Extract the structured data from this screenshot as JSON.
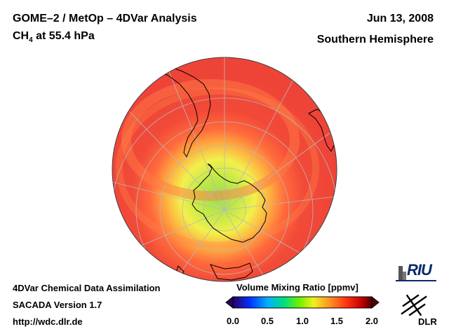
{
  "header": {
    "title_line1": "GOME–2 / MetOp – 4DVar Analysis",
    "species": "CH",
    "species_sub": "4",
    "level": "at 55.4 hPa",
    "date": "Jun 13, 2008",
    "region": "Southern Hemisphere"
  },
  "footer": {
    "line1": "4DVar Chemical Data Assimilation",
    "line2": "SACADA Version 1.7",
    "line3": "http://wdc.dlr.de"
  },
  "colorbar": {
    "title": "Volume Mixing Ratio [ppmv]",
    "ticks": [
      "0.0",
      "0.5",
      "1.0",
      "1.5",
      "2.0"
    ],
    "range": [
      0.0,
      2.0
    ],
    "colors": [
      "#2a0060",
      "#0030ff",
      "#00c0ff",
      "#00e070",
      "#b0f000",
      "#ffff40",
      "#ff9030",
      "#ff3020",
      "#c00000",
      "#500000"
    ]
  },
  "logos": {
    "riu": "RIU",
    "dlr": "DLR"
  },
  "map": {
    "projection": "orthographic, south pole view",
    "background_color": "#f04a3a",
    "ring_color": "#ff7040",
    "pole_color": "#a8e050",
    "mid_color": "#f0f050",
    "coastline_color": "#000000",
    "graticule_color": "#b0b0b0"
  }
}
